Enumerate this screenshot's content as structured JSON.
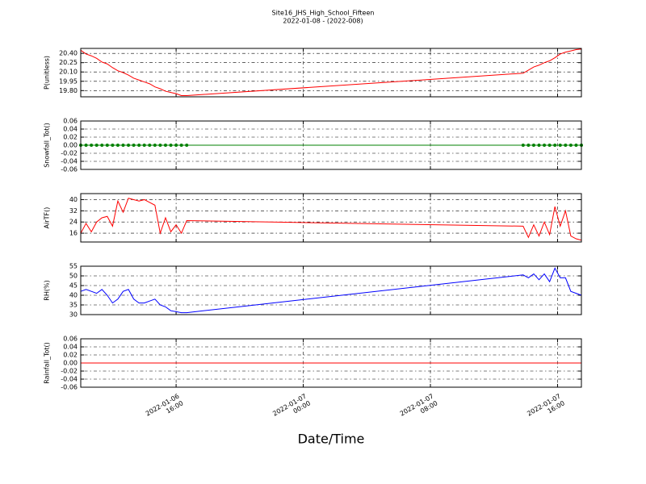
{
  "title": "Site16_JHS_High_School_Fifteen",
  "subtitle": "2022-01-08 - (2022-008)",
  "chart_data": [
    {
      "type": "line",
      "y_label": "P(unitless)",
      "color": "#ff0000",
      "x": [
        "2022-01-06 10:00",
        "2022-01-06 10:20",
        "2022-01-06 10:40",
        "2022-01-06 11:00",
        "2022-01-06 11:20",
        "2022-01-06 11:40",
        "2022-01-06 12:00",
        "2022-01-06 12:20",
        "2022-01-06 12:40",
        "2022-01-06 13:00",
        "2022-01-06 13:20",
        "2022-01-06 13:40",
        "2022-01-06 14:00",
        "2022-01-06 14:20",
        "2022-01-06 14:40",
        "2022-01-06 15:00",
        "2022-01-06 15:20",
        "2022-01-06 15:40",
        "2022-01-06 16:00",
        "2022-01-06 16:20",
        "2022-01-06 16:40",
        "2022-01-07 13:50",
        "2022-01-07 14:10",
        "2022-01-07 14:30",
        "2022-01-07 14:50",
        "2022-01-07 15:10",
        "2022-01-07 15:30",
        "2022-01-07 15:50",
        "2022-01-07 16:10",
        "2022-01-07 16:30",
        "2022-01-07 16:50",
        "2022-01-07 17:10",
        "2022-01-07 17:30"
      ],
      "values": [
        20.45,
        20.39,
        20.36,
        20.32,
        20.26,
        20.23,
        20.17,
        20.12,
        20.09,
        20.05,
        20.0,
        19.97,
        19.94,
        19.91,
        19.86,
        19.83,
        19.79,
        19.77,
        19.75,
        19.72,
        19.72,
        20.08,
        20.13,
        20.18,
        20.21,
        20.25,
        20.28,
        20.33,
        20.39,
        20.42,
        20.44,
        20.46,
        20.47
      ],
      "xlim": [
        "2022-01-06 10:00",
        "2022-01-07 17:30"
      ],
      "xticks": [
        "2022-01-06 16:00",
        "2022-01-07 00:00",
        "2022-01-07 08:00",
        "2022-01-07 16:00"
      ],
      "ylim": [
        19.7,
        20.48
      ],
      "yticks": [
        {
          "value": 19.8,
          "label": "19.80"
        },
        {
          "value": 19.95,
          "label": "19.95"
        },
        {
          "value": 20.1,
          "label": "20.10"
        },
        {
          "value": 20.25,
          "label": "20.25"
        },
        {
          "value": 20.4,
          "label": "20.40"
        }
      ],
      "grid": true
    },
    {
      "type": "line",
      "y_label": "Snowfall_Tot()",
      "color": "#008000",
      "marker": "circle",
      "x": [
        "2022-01-06 10:00",
        "2022-01-06 10:20",
        "2022-01-06 10:40",
        "2022-01-06 11:00",
        "2022-01-06 11:20",
        "2022-01-06 11:40",
        "2022-01-06 12:00",
        "2022-01-06 12:20",
        "2022-01-06 12:40",
        "2022-01-06 13:00",
        "2022-01-06 13:20",
        "2022-01-06 13:40",
        "2022-01-06 14:00",
        "2022-01-06 14:20",
        "2022-01-06 14:40",
        "2022-01-06 15:00",
        "2022-01-06 15:20",
        "2022-01-06 15:40",
        "2022-01-06 16:00",
        "2022-01-06 16:20",
        "2022-01-06 16:40",
        "2022-01-07 13:50",
        "2022-01-07 14:10",
        "2022-01-07 14:30",
        "2022-01-07 14:50",
        "2022-01-07 15:10",
        "2022-01-07 15:30",
        "2022-01-07 15:50",
        "2022-01-07 16:10",
        "2022-01-07 16:30",
        "2022-01-07 16:50",
        "2022-01-07 17:10",
        "2022-01-07 17:30"
      ],
      "values": [
        0,
        0,
        0,
        0,
        0,
        0,
        0,
        0,
        0,
        0,
        0,
        0,
        0,
        0,
        0,
        0,
        0,
        0,
        0,
        0,
        0,
        0,
        0,
        0,
        0,
        0,
        0,
        0,
        0,
        0,
        0,
        0,
        0
      ],
      "xlim": [
        "2022-01-06 10:00",
        "2022-01-07 17:30"
      ],
      "xticks": [
        "2022-01-06 16:00",
        "2022-01-07 00:00",
        "2022-01-07 08:00",
        "2022-01-07 16:00"
      ],
      "ylim": [
        -0.06,
        0.06
      ],
      "yticks": [
        -0.06,
        -0.04,
        -0.02,
        {
          "value": 0,
          "label": "0.00"
        },
        0.02,
        0.04,
        0.06
      ],
      "grid": true
    },
    {
      "type": "line",
      "y_label": "AirTF()",
      "color": "#ff0000",
      "x": [
        "2022-01-06 10:00",
        "2022-01-06 10:20",
        "2022-01-06 10:40",
        "2022-01-06 11:00",
        "2022-01-06 11:20",
        "2022-01-06 11:40",
        "2022-01-06 12:00",
        "2022-01-06 12:20",
        "2022-01-06 12:40",
        "2022-01-06 13:00",
        "2022-01-06 13:20",
        "2022-01-06 13:40",
        "2022-01-06 14:00",
        "2022-01-06 14:20",
        "2022-01-06 14:40",
        "2022-01-06 15:00",
        "2022-01-06 15:20",
        "2022-01-06 15:40",
        "2022-01-06 16:00",
        "2022-01-06 16:20",
        "2022-01-06 16:40",
        "2022-01-07 13:50",
        "2022-01-07 14:10",
        "2022-01-07 14:30",
        "2022-01-07 14:50",
        "2022-01-07 15:10",
        "2022-01-07 15:30",
        "2022-01-07 15:50",
        "2022-01-07 16:10",
        "2022-01-07 16:30",
        "2022-01-07 16:50",
        "2022-01-07 17:10",
        "2022-01-07 17:30"
      ],
      "values": [
        16,
        23,
        17,
        24,
        27,
        28,
        21,
        39,
        31,
        41,
        40,
        39,
        40,
        38,
        36,
        16,
        27,
        17,
        22,
        16,
        25,
        21,
        13,
        22,
        14,
        24,
        15,
        35,
        21,
        32,
        14,
        12,
        11
      ],
      "xlim": [
        "2022-01-06 10:00",
        "2022-01-07 17:30"
      ],
      "xticks": [
        "2022-01-06 16:00",
        "2022-01-07 00:00",
        "2022-01-07 08:00",
        "2022-01-07 16:00"
      ],
      "ylim": [
        9.7,
        44.3
      ],
      "yticks": [
        16,
        24,
        32,
        40
      ],
      "grid": true
    },
    {
      "type": "line",
      "y_label": "RH(%)",
      "color": "#0000ff",
      "x": [
        "2022-01-06 10:00",
        "2022-01-06 10:20",
        "2022-01-06 10:40",
        "2022-01-06 11:00",
        "2022-01-06 11:20",
        "2022-01-06 11:40",
        "2022-01-06 12:00",
        "2022-01-06 12:20",
        "2022-01-06 12:40",
        "2022-01-06 13:00",
        "2022-01-06 13:20",
        "2022-01-06 13:40",
        "2022-01-06 14:00",
        "2022-01-06 14:20",
        "2022-01-06 14:40",
        "2022-01-06 15:00",
        "2022-01-06 15:20",
        "2022-01-06 15:40",
        "2022-01-06 16:00",
        "2022-01-06 16:20",
        "2022-01-06 16:40",
        "2022-01-07 13:50",
        "2022-01-07 14:10",
        "2022-01-07 14:30",
        "2022-01-07 14:50",
        "2022-01-07 15:10",
        "2022-01-07 15:30",
        "2022-01-07 15:50",
        "2022-01-07 16:10",
        "2022-01-07 16:30",
        "2022-01-07 16:50",
        "2022-01-07 17:10",
        "2022-01-07 17:30"
      ],
      "values": [
        42,
        43,
        42,
        41,
        43,
        40,
        36,
        38,
        42,
        43,
        38,
        36,
        36,
        37,
        38,
        35,
        34,
        32,
        31.5,
        31,
        31,
        50.5,
        49,
        51,
        48,
        51,
        47,
        54,
        49,
        49,
        42,
        41,
        40
      ],
      "xlim": [
        "2022-01-06 10:00",
        "2022-01-07 17:30"
      ],
      "xticks": [
        "2022-01-06 16:00",
        "2022-01-07 00:00",
        "2022-01-07 08:00",
        "2022-01-07 16:00"
      ],
      "ylim": [
        30,
        55
      ],
      "yticks": [
        30,
        35,
        40,
        45,
        50,
        55
      ],
      "grid": true
    },
    {
      "type": "line",
      "y_label": "Rainfall_Tot()",
      "x_label": "Date/Time",
      "color": "#ff0000",
      "x": [
        "2022-01-06 10:00",
        "2022-01-06 10:20",
        "2022-01-06 10:40",
        "2022-01-06 11:00",
        "2022-01-06 11:20",
        "2022-01-06 11:40",
        "2022-01-06 12:00",
        "2022-01-06 12:20",
        "2022-01-06 12:40",
        "2022-01-06 13:00",
        "2022-01-06 13:20",
        "2022-01-06 13:40",
        "2022-01-06 14:00",
        "2022-01-06 14:20",
        "2022-01-06 14:40",
        "2022-01-06 15:00",
        "2022-01-06 15:20",
        "2022-01-06 15:40",
        "2022-01-06 16:00",
        "2022-01-06 16:20",
        "2022-01-06 16:40",
        "2022-01-07 13:50",
        "2022-01-07 14:10",
        "2022-01-07 14:30",
        "2022-01-07 14:50",
        "2022-01-07 15:10",
        "2022-01-07 15:30",
        "2022-01-07 15:50",
        "2022-01-07 16:10",
        "2022-01-07 16:30",
        "2022-01-07 16:50",
        "2022-01-07 17:10",
        "2022-01-07 17:30"
      ],
      "values": [
        0,
        0,
        0,
        0,
        0,
        0,
        0,
        0,
        0,
        0,
        0,
        0,
        0,
        0,
        0,
        0,
        0,
        0,
        0,
        0,
        0,
        0,
        0,
        0,
        0,
        0,
        0,
        0,
        0,
        0,
        0,
        0,
        0
      ],
      "xlim": [
        "2022-01-06 10:00",
        "2022-01-07 17:30"
      ],
      "xticks": [
        "2022-01-06 16:00",
        "2022-01-07 00:00",
        "2022-01-07 08:00",
        "2022-01-07 16:00"
      ],
      "ylim": [
        -0.06,
        0.06
      ],
      "yticks": [
        -0.06,
        -0.04,
        -0.02,
        {
          "value": 0,
          "label": "0.00"
        },
        0.02,
        0.04,
        0.06
      ],
      "grid": true
    }
  ]
}
